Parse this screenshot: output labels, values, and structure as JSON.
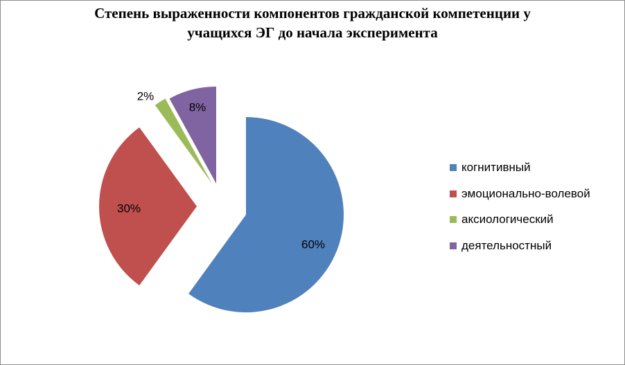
{
  "chart_data": {
    "type": "pie",
    "title_line1": "Степень выраженности компонентов гражданской компетенции у",
    "title_line2": "учащихся ЭГ до начала эксперимента",
    "categories": [
      "когнитивный",
      "эмоционально-волевой",
      "аксиологический",
      "деятельностный"
    ],
    "values": [
      60,
      30,
      2,
      8
    ],
    "data_labels": [
      "60%",
      "30%",
      "2%",
      "8%"
    ],
    "colors": [
      "#4f81bd",
      "#c0504d",
      "#9bbb59",
      "#8064a2"
    ],
    "exploded": true,
    "legend_position": "right"
  }
}
